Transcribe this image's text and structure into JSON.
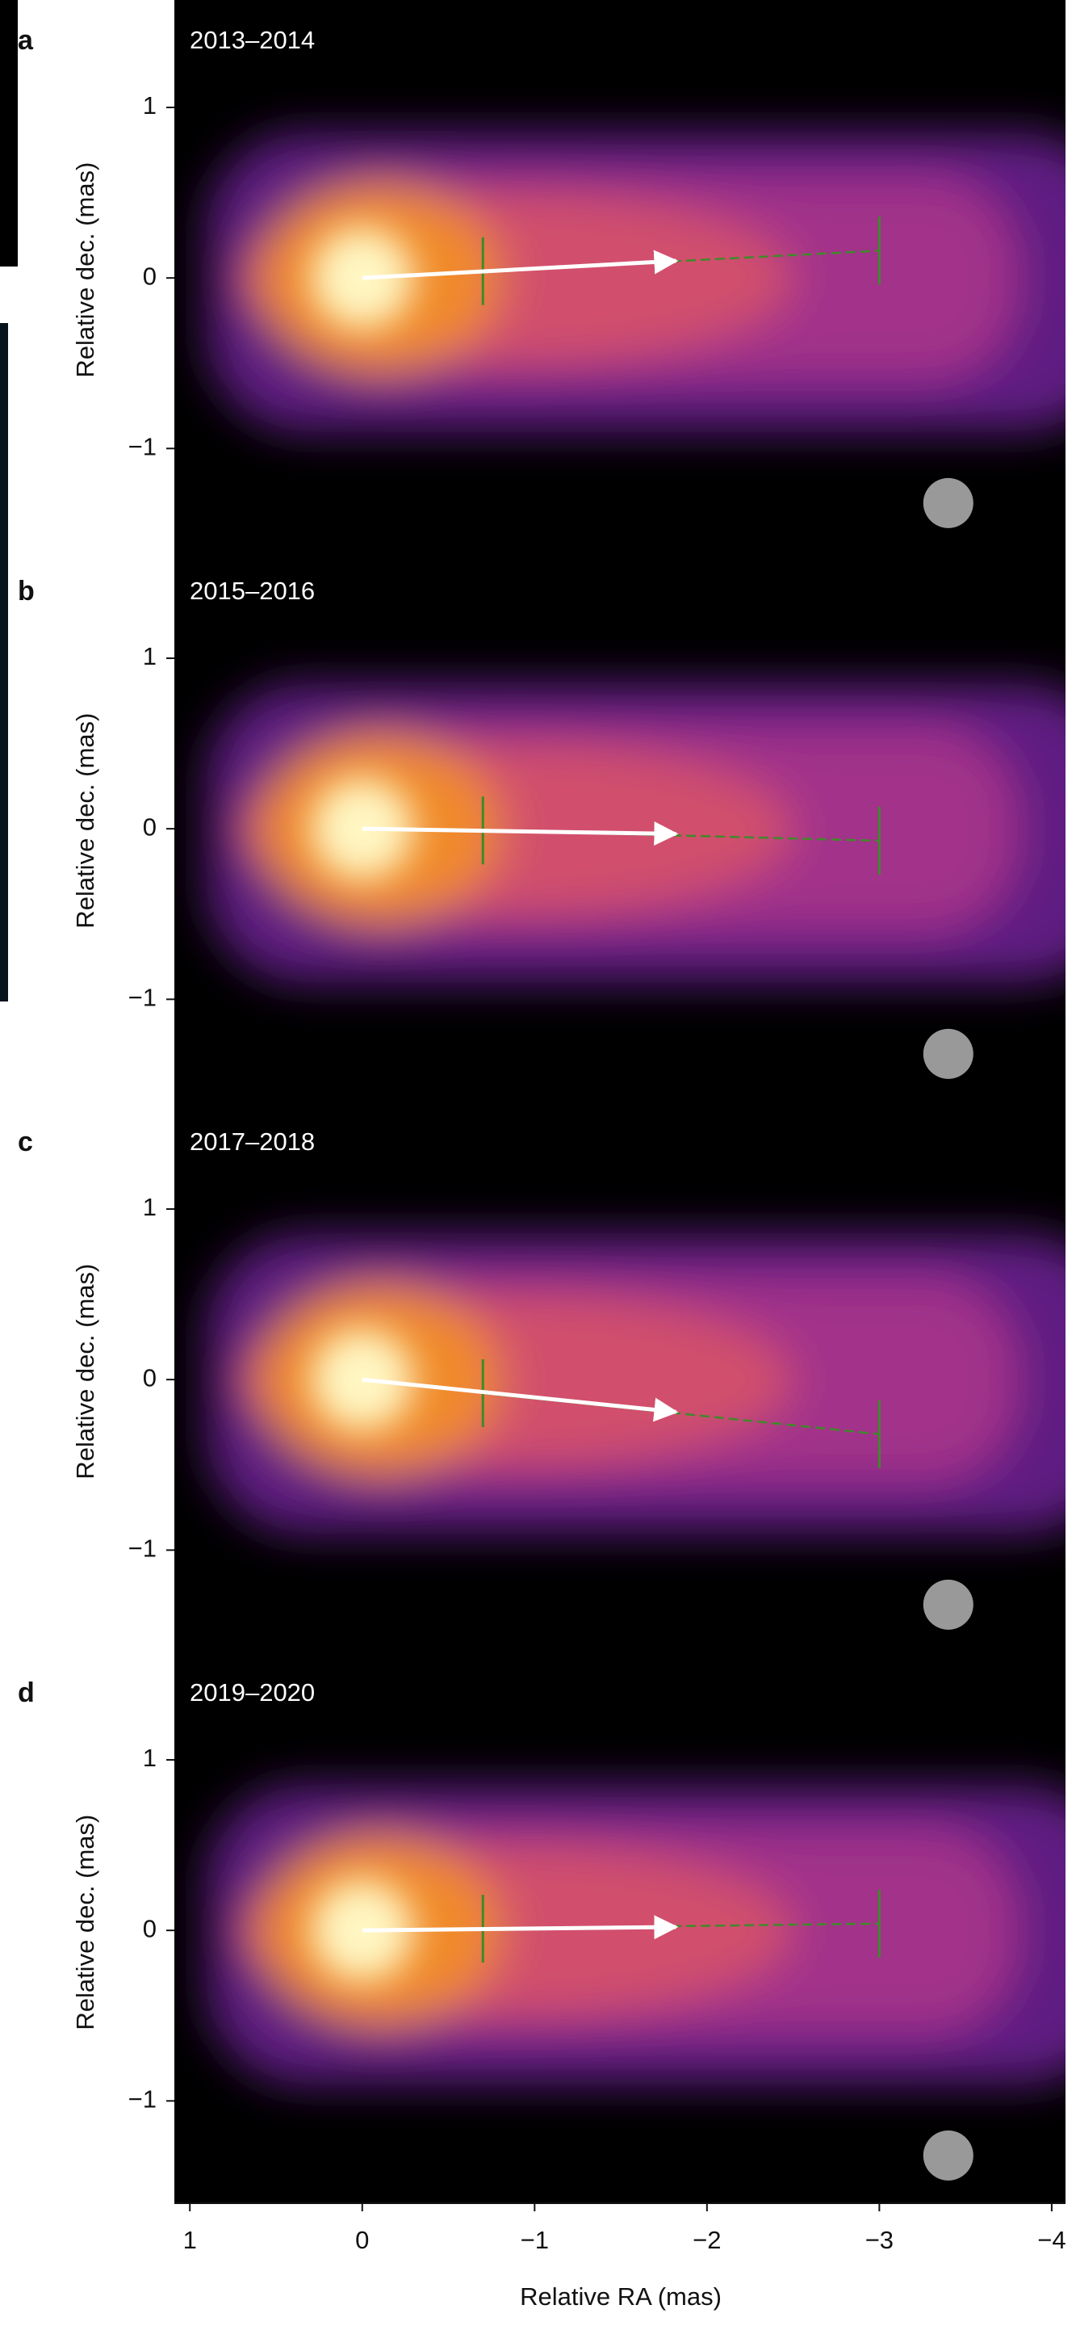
{
  "chart_data": [
    {
      "type": "image",
      "panel_label": "a",
      "title": "2013–2014",
      "ylabel": "Relative dec. (mas)",
      "xlim": [
        1.09,
        -4.08
      ],
      "ylim": [
        -1.6,
        1.63
      ],
      "yticks": [
        {
          "value": -1,
          "label": "−1"
        },
        0,
        1
      ],
      "arrow": {
        "x": [
          0,
          -1.82
        ],
        "y": [
          0,
          0.1
        ]
      },
      "dashed_line": {
        "x": [
          -0.7,
          -3
        ],
        "y": [
          0.04,
          0.16
        ]
      }
    },
    {
      "type": "image",
      "panel_label": "b",
      "title": "2015–2016",
      "ylabel": "Relative dec. (mas)",
      "xlim": [
        1.09,
        -4.08
      ],
      "ylim": [
        -1.6,
        1.63
      ],
      "yticks": [
        {
          "value": -1,
          "label": "−1"
        },
        0,
        1
      ],
      "arrow": {
        "x": [
          0,
          -1.82
        ],
        "y": [
          0,
          -0.03
        ]
      },
      "dashed_line": {
        "x": [
          -0.7,
          -3
        ],
        "y": [
          -0.01,
          -0.07
        ]
      }
    },
    {
      "type": "image",
      "panel_label": "c",
      "title": "2017–2018",
      "ylabel": "Relative dec. (mas)",
      "xlim": [
        1.09,
        -4.08
      ],
      "ylim": [
        -1.6,
        1.63
      ],
      "yticks": [
        {
          "value": -1,
          "label": "−1"
        },
        0,
        1
      ],
      "arrow": {
        "x": [
          0,
          -1.82
        ],
        "y": [
          0,
          -0.19
        ]
      },
      "dashed_line": {
        "x": [
          -0.7,
          -3
        ],
        "y": [
          -0.08,
          -0.32
        ]
      }
    },
    {
      "type": "image",
      "panel_label": "d",
      "title": "2019–2020",
      "ylabel": "Relative dec. (mas)",
      "xlabel": "Relative RA (mas)",
      "xlim": [
        1.09,
        -4.08
      ],
      "ylim": [
        -1.6,
        1.63
      ],
      "yticks": [
        {
          "value": -1,
          "label": "−1"
        },
        0,
        1
      ],
      "xticks": [
        1,
        0,
        {
          "value": -1,
          "label": "−1"
        },
        {
          "value": -2,
          "label": "−2"
        },
        {
          "value": -3,
          "label": "−3"
        },
        {
          "value": -4,
          "label": "−4"
        }
      ],
      "arrow": {
        "x": [
          0,
          -1.82
        ],
        "y": [
          0,
          0.02
        ]
      },
      "dashed_line": {
        "x": [
          -0.7,
          -3
        ],
        "y": [
          0.01,
          0.04
        ]
      }
    }
  ]
}
